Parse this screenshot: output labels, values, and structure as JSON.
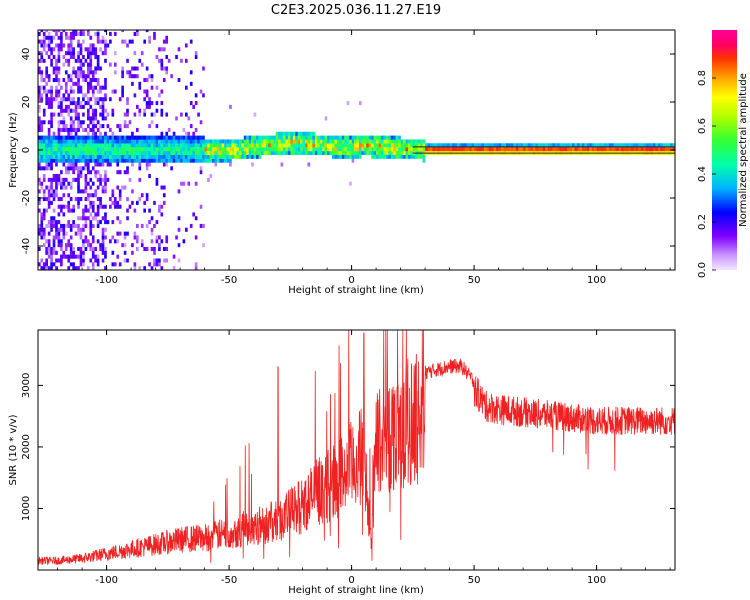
{
  "title": "C2E3.2025.036.11.27.E19",
  "colors": {
    "snr_line": "#ee2222",
    "frame": "#000000"
  },
  "chart_data": [
    {
      "type": "heatmap",
      "xlabel": "Height of straight line (km)",
      "ylabel": "Frequency (Hz)",
      "xlim": [
        -128,
        132
      ],
      "ylim": [
        -50,
        50
      ],
      "xticks": [
        -100,
        -50,
        0,
        50,
        100
      ],
      "yticks": [
        -40,
        -20,
        0,
        20,
        40
      ],
      "colorbar": {
        "label": "Normalized spectral amplitude",
        "range": [
          0,
          1
        ],
        "ticks": [
          "0.0",
          "0.2",
          "0.4",
          "0.6",
          "0.8"
        ],
        "colormap": "rainbow (violet → blue → cyan → green → yellow → orange → red → magenta)"
      },
      "description_points": {
        "band_center_freq_hz": 0,
        "band_center_profile": [
          {
            "x": -100,
            "y": 0
          },
          {
            "x": -75,
            "y": 0
          },
          {
            "x": -50,
            "y": 0
          },
          {
            "x": -35,
            "y": 2
          },
          {
            "x": -25,
            "y": 3
          },
          {
            "x": -12,
            "y": 2
          },
          {
            "x": 0,
            "y": 1
          },
          {
            "x": 5,
            "y": 2
          },
          {
            "x": 15,
            "y": 1
          },
          {
            "x": 30,
            "y": 0
          },
          {
            "x": 132,
            "y": 0
          }
        ],
        "noise_region_x": [
          -128,
          -60
        ]
      }
    },
    {
      "type": "line",
      "xlabel": "Height of straight line (km)",
      "ylabel": "SNR (10 * v/v)",
      "xlim": [
        -128,
        132
      ],
      "ylim": [
        0,
        3900
      ],
      "xticks": [
        -100,
        -50,
        0,
        50,
        100
      ],
      "yticks": [
        1000,
        2000,
        3000
      ],
      "series": [
        {
          "x": [
            -128,
            -120,
            -110,
            -100,
            -90,
            -80,
            -70,
            -60,
            -50,
            -40,
            -30,
            -25,
            -20,
            -15,
            -10,
            -5,
            0,
            5,
            8,
            10,
            15,
            20,
            25,
            30,
            35,
            40,
            45,
            50,
            55,
            60,
            70,
            80,
            90,
            100,
            110,
            120,
            132
          ],
          "y": [
            200,
            200,
            250,
            350,
            450,
            550,
            650,
            700,
            800,
            950,
            1050,
            1250,
            1400,
            1650,
            1800,
            2000,
            2250,
            2500,
            600,
            2750,
            2900,
            3100,
            3250,
            3300,
            3350,
            3400,
            3400,
            3150,
            2850,
            2800,
            2750,
            2700,
            2650,
            2600,
            2600,
            2600,
            2600
          ]
        }
      ]
    }
  ]
}
